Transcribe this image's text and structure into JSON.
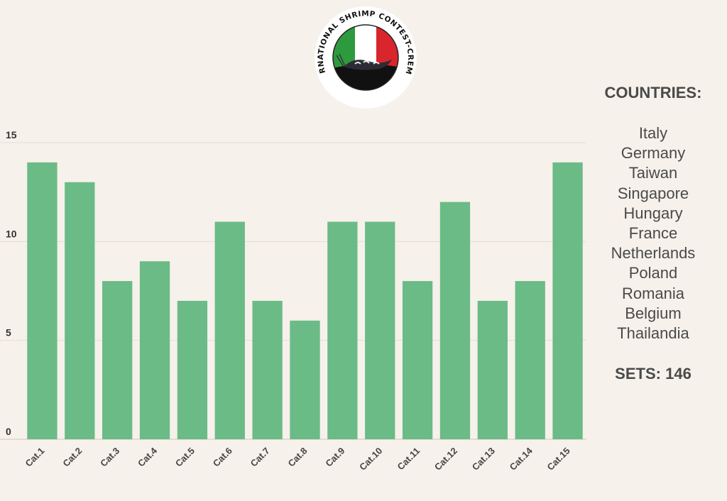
{
  "logo": {
    "text": "INTERNATIONAL SHRIMP CONTEST-CREMONA",
    "colors": {
      "green": "#2e9a3e",
      "white": "#ffffff",
      "red": "#d8262c",
      "ground": "#111111"
    }
  },
  "side_panel": {
    "countries_title": "COUNTRIES:",
    "countries": [
      "Italy",
      "Germany",
      "Taiwan",
      "Singapore",
      "Hungary",
      "France",
      "Netherlands",
      "Poland",
      "Romania",
      "Belgium",
      "Thailandia"
    ],
    "sets_label": "SETS:",
    "sets_value": "146"
  },
  "chart_data": {
    "type": "bar",
    "categories": [
      "Cat.1",
      "Cat.2",
      "Cat.3",
      "Cat.4",
      "Cat.5",
      "Cat.6",
      "Cat.7",
      "Cat.8",
      "Cat.9",
      "Cat.10",
      "Cat.11",
      "Cat.12",
      "Cat.13",
      "Cat.14",
      "Cat.15"
    ],
    "values": [
      14,
      13,
      8,
      9,
      7,
      11,
      7,
      6,
      11,
      11,
      8,
      12,
      7,
      8,
      14
    ],
    "ylim": [
      0,
      15
    ],
    "yticks": [
      0,
      5,
      10,
      15
    ],
    "grid": true,
    "colors": {
      "bar": "#6bbb86",
      "grid": "#e3ddd4",
      "baseline": "#cfc8bd"
    }
  }
}
